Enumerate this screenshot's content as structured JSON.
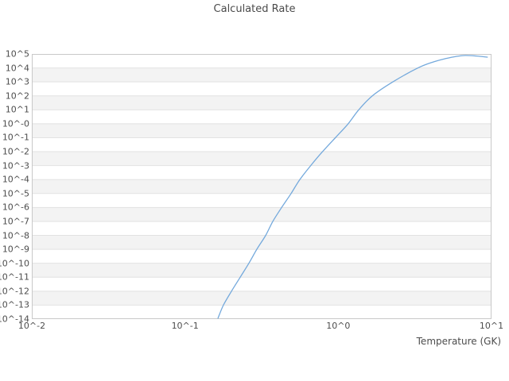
{
  "chart": {
    "title": "Calculated Rate",
    "x_axis": {
      "label": "Temperature (GK)",
      "tick_labels": [
        "10^-2",
        "10^-1",
        "10^0",
        "10^1"
      ],
      "log_range": [
        -2,
        1
      ]
    },
    "y_axis": {
      "tick_labels": [
        "10^5",
        "10^4",
        "10^3",
        "10^2",
        "10^1",
        "10^-0",
        "10^-1",
        "10^-2",
        "10^-3",
        "10^-4",
        "10^-5",
        "10^-6",
        "10^-7",
        "10^-8",
        "10^-9",
        "10^-10",
        "10^-11",
        "10^-12",
        "10^-13",
        "10^-14"
      ],
      "log_range": [
        5,
        -14
      ]
    },
    "colors": {
      "line": "#74a9dc",
      "band": "#f3f3f3",
      "grid": "#e2e2e2",
      "frame": "#c8c8c8",
      "text": "#4d4d4d",
      "background": "#ffffff"
    }
  },
  "chart_data": {
    "type": "line",
    "title": "Calculated Rate",
    "xlabel": "Temperature (GK)",
    "ylabel": "",
    "x_scale": "log",
    "y_scale": "log",
    "xlim": [
      0.01,
      10
    ],
    "ylim": [
      1e-14,
      100000.0
    ],
    "grid": "horizontal-decade-bands",
    "legend": "none",
    "series": [
      {
        "name": "Calculated Rate",
        "x": [
          0.164,
          0.178,
          0.201,
          0.229,
          0.261,
          0.294,
          0.336,
          0.374,
          0.427,
          0.492,
          0.561,
          0.661,
          0.789,
          0.957,
          1.16,
          1.36,
          1.67,
          2.27,
          3.31,
          4.18,
          4.99,
          5.97,
          6.73,
          8.05,
          9.4
        ],
        "y": [
          1.15e-14,
          1e-13,
          1e-12,
          1e-11,
          1e-10,
          1e-09,
          1e-08,
          1e-07,
          1e-06,
          1e-05,
          0.0001,
          0.001,
          0.01,
          0.1,
          1.0,
          10,
          100,
          1000,
          10000.0,
          27000.0,
          46000.0,
          68000.0,
          78000.0,
          71000.0,
          59000.0
        ]
      }
    ]
  }
}
